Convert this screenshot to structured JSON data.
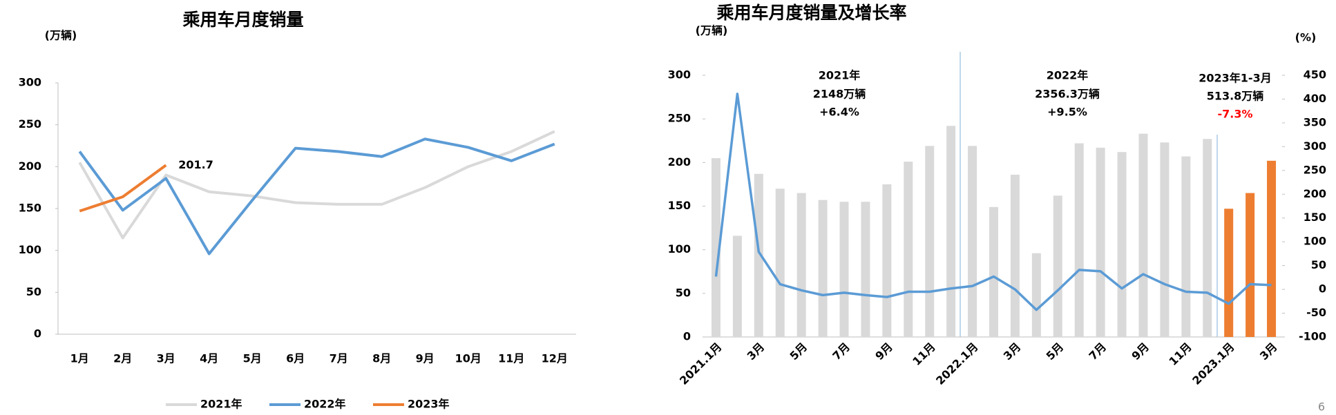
{
  "chart_data": [
    {
      "type": "line",
      "title": "乘用车月度销量",
      "y_label": "(万辆)",
      "categories": [
        "1月",
        "2月",
        "3月",
        "4月",
        "5月",
        "6月",
        "7月",
        "8月",
        "9月",
        "10月",
        "11月",
        "12月"
      ],
      "ylim": [
        0,
        300
      ],
      "yticks": [
        0,
        50,
        100,
        150,
        200,
        250,
        300
      ],
      "series": [
        {
          "name": "2021年",
          "color": "#d9d9d9",
          "values": [
            205,
            115,
            190,
            170,
            165,
            157,
            155,
            155,
            175,
            200,
            218,
            242
          ]
        },
        {
          "name": "2022年",
          "color": "#5b9bd5",
          "values": [
            218,
            148,
            186,
            96,
            160,
            222,
            218,
            212,
            233,
            223,
            207,
            227
          ]
        },
        {
          "name": "2023年",
          "color": "#ed7d31",
          "values": [
            147,
            164,
            201.7,
            null,
            null,
            null,
            null,
            null,
            null,
            null,
            null,
            null
          ]
        }
      ],
      "data_label": {
        "series": 2,
        "index": 2
      }
    },
    {
      "type": "bar_line",
      "title": "乘用车月度销量及增长率",
      "y_label": "(万辆)",
      "y2_label": "(%)",
      "categories": [
        "2021.1月",
        null,
        "3月",
        null,
        "5月",
        null,
        "7月",
        null,
        "9月",
        null,
        "11月",
        null,
        "2022.1月",
        null,
        "3月",
        null,
        "5月",
        null,
        "7月",
        null,
        "9月",
        null,
        "11月",
        null,
        "2023.1月",
        null,
        "3月"
      ],
      "ylim": [
        0,
        300
      ],
      "yticks": [
        0,
        50,
        100,
        150,
        200,
        250,
        300
      ],
      "y2lim": [
        -100,
        450
      ],
      "y2ticks": [
        -100,
        -50,
        0,
        50,
        100,
        150,
        200,
        250,
        300,
        350,
        400,
        450
      ],
      "series": [
        {
          "type": "bar",
          "values": [
            205,
            116,
            187,
            170,
            165,
            157,
            155,
            155,
            175,
            201,
            219,
            242,
            219,
            149,
            186,
            96,
            162,
            222,
            217,
            212,
            233,
            223,
            207,
            227,
            147,
            165,
            202
          ],
          "colors": [
            "#d9d9d9",
            "#d9d9d9",
            "#d9d9d9",
            "#d9d9d9",
            "#d9d9d9",
            "#d9d9d9",
            "#d9d9d9",
            "#d9d9d9",
            "#d9d9d9",
            "#d9d9d9",
            "#d9d9d9",
            "#d9d9d9",
            "#d9d9d9",
            "#d9d9d9",
            "#d9d9d9",
            "#d9d9d9",
            "#d9d9d9",
            "#d9d9d9",
            "#d9d9d9",
            "#d9d9d9",
            "#d9d9d9",
            "#d9d9d9",
            "#d9d9d9",
            "#d9d9d9",
            "#ed7d31",
            "#ed7d31",
            "#ed7d31"
          ]
        },
        {
          "type": "line",
          "axis": "y2",
          "color": "#5b9bd5",
          "values": [
            27,
            411,
            79,
            11,
            -2,
            -12,
            -7,
            -12,
            -16,
            -5,
            -5,
            2,
            7,
            27,
            0,
            -43,
            -2,
            41,
            38,
            2,
            32,
            11,
            -5,
            -7,
            -30,
            11,
            9
          ]
        }
      ],
      "annotations": [
        {
          "text": "2021年",
          "color": "#000000"
        },
        {
          "text": "2148万辆",
          "color": "#000000"
        },
        {
          "text": "+6.4%",
          "color": "#000000"
        },
        {
          "text": "2022年",
          "color": "#000000"
        },
        {
          "text": "2356.3万辆",
          "color": "#000000"
        },
        {
          "text": "+9.5%",
          "color": "#000000"
        },
        {
          "text": "2023年1-3月",
          "color": "#000000"
        },
        {
          "text": "513.8万辆",
          "color": "#000000"
        },
        {
          "text": "-7.3%",
          "color": "#ff0000"
        }
      ]
    }
  ],
  "page_number": "6"
}
